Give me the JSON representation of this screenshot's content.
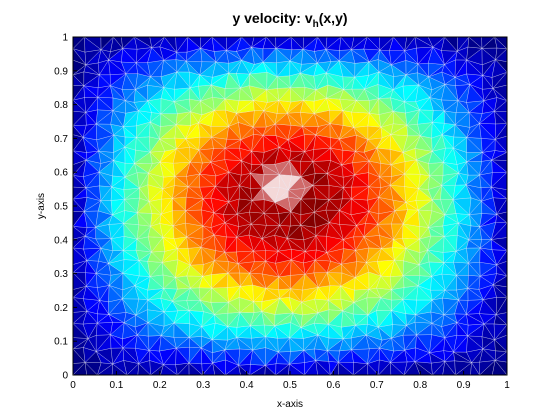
{
  "chart_data": {
    "type": "heatmap",
    "title_main": "y velocity: v",
    "title_sub": "h",
    "title_tail": "(x,y)",
    "xlabel": "x-axis",
    "ylabel": "y-axis",
    "xlim": [
      0,
      1
    ],
    "ylim": [
      0,
      1
    ],
    "x_ticks": [
      "0",
      "0.1",
      "0.2",
      "0.3",
      "0.4",
      "0.5",
      "0.6",
      "0.7",
      "0.8",
      "0.9",
      "1"
    ],
    "y_ticks": [
      "0",
      "0.1",
      "0.2",
      "0.3",
      "0.4",
      "0.5",
      "0.6",
      "0.7",
      "0.8",
      "0.9",
      "1"
    ],
    "colormap": "jet",
    "mesh": "triangular finite-element mesh (white edges)",
    "peak": {
      "x": 0.48,
      "y": 0.56
    },
    "grid": false
  }
}
